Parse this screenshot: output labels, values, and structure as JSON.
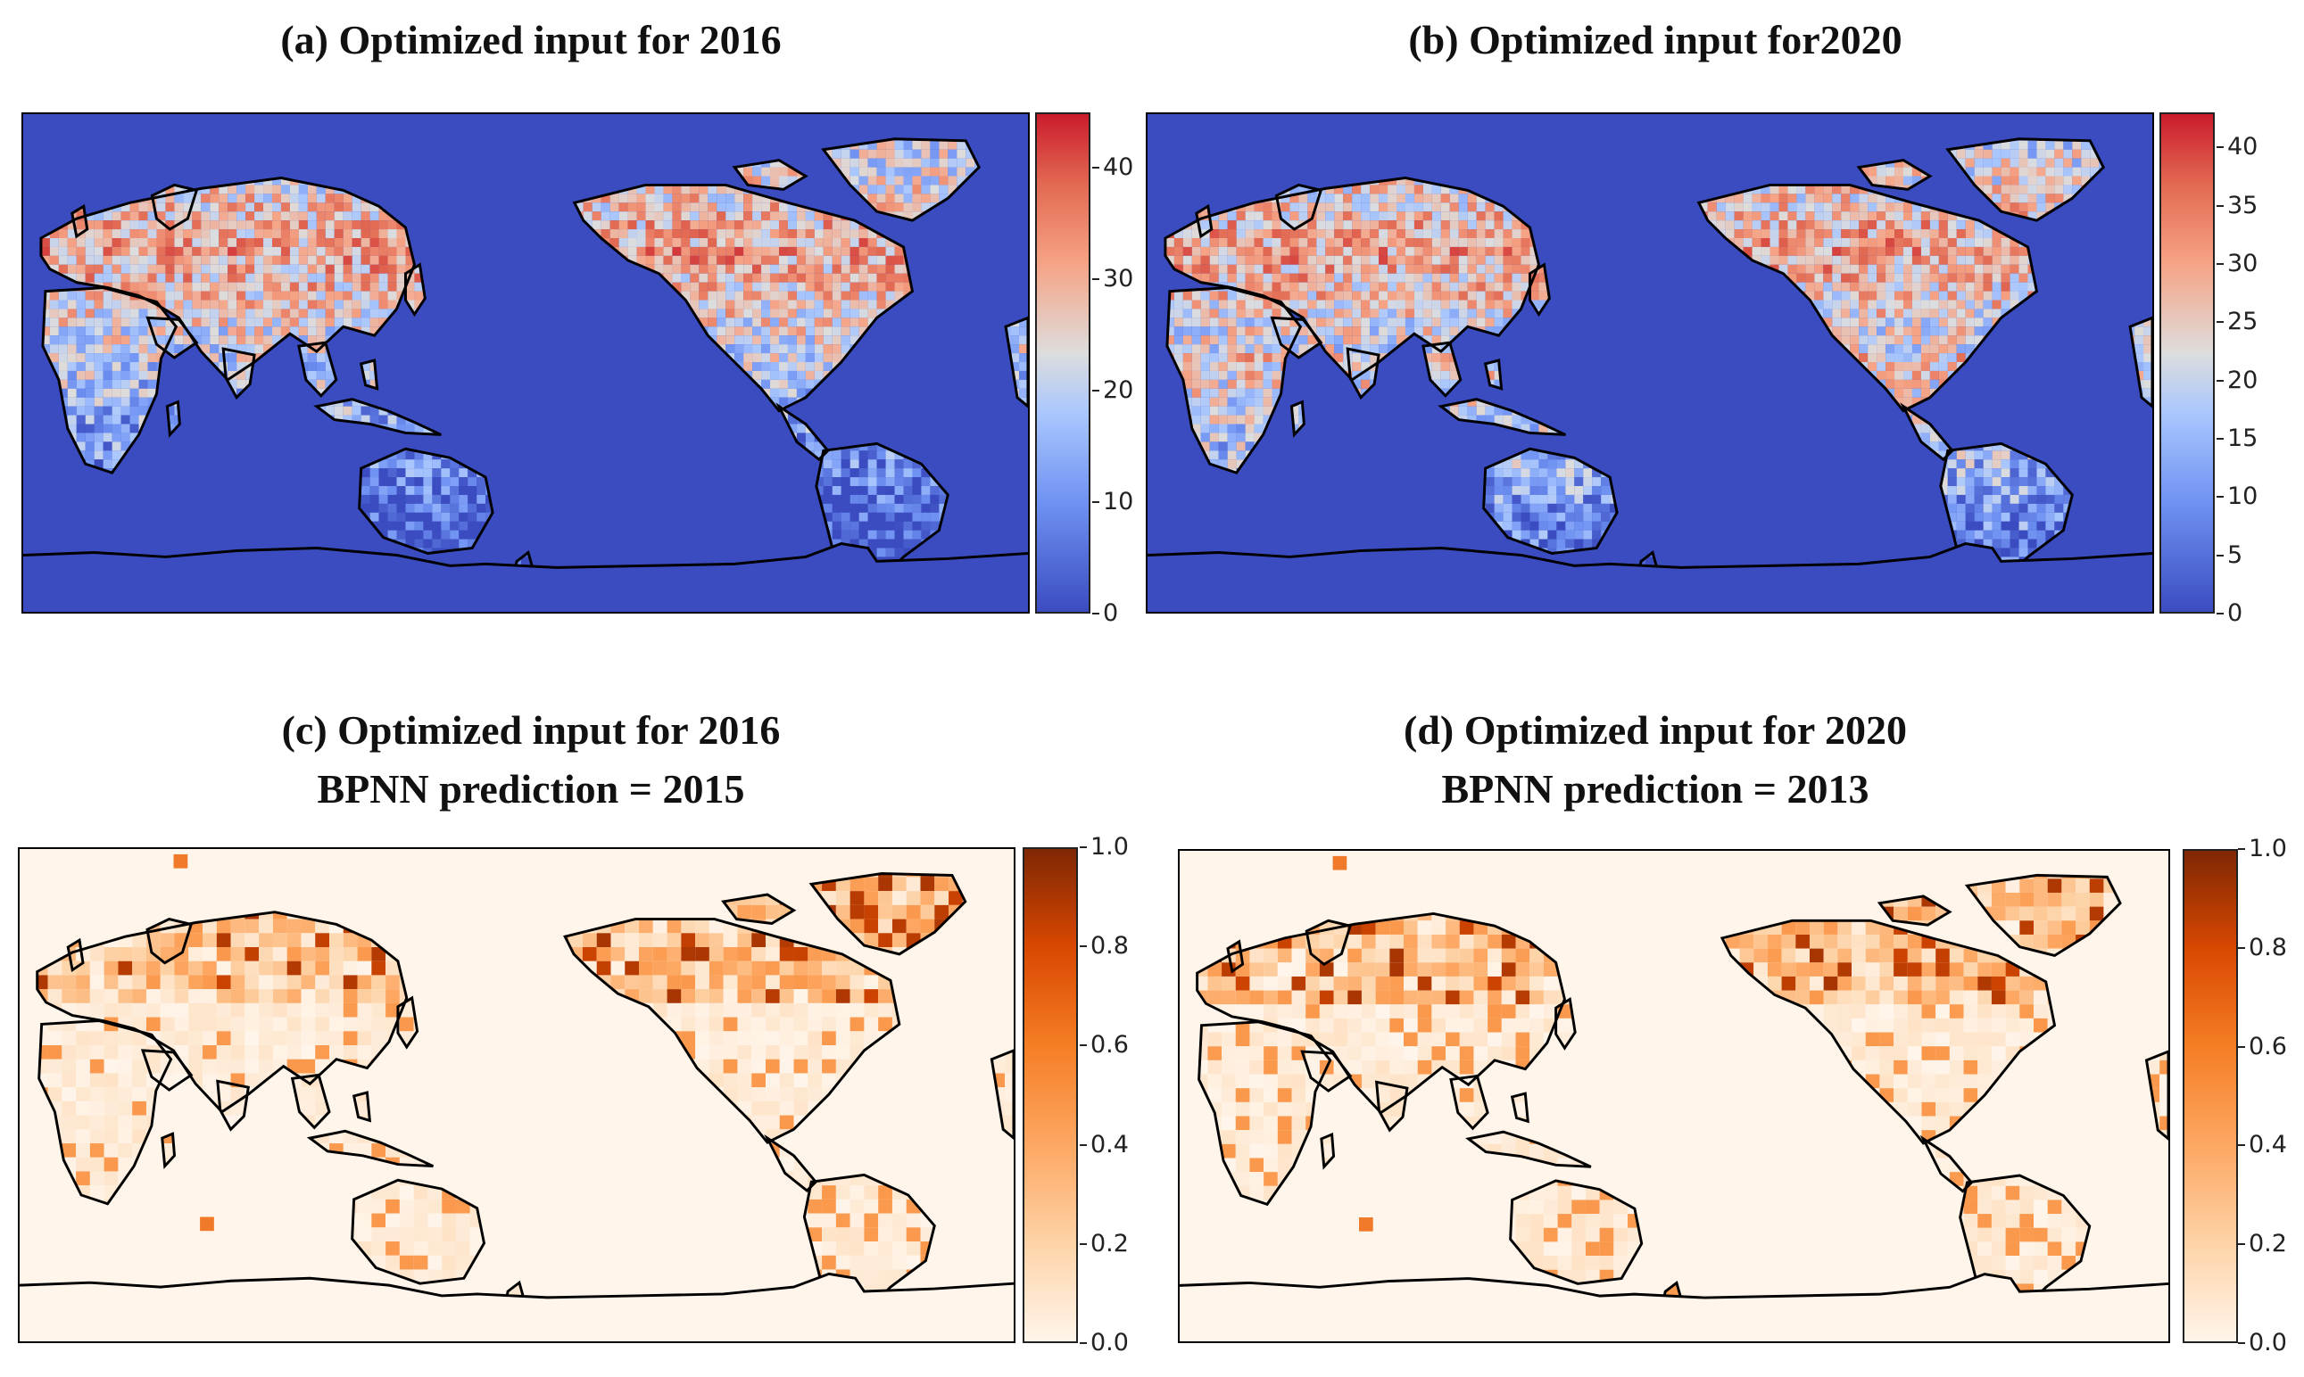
{
  "chart_data": [
    {
      "type": "heatmap",
      "id": "a",
      "title": "(a) Optimized input for 2016",
      "colormap": "coolwarm",
      "colorbar": {
        "min": 0,
        "max": 45,
        "ticks": [
          "0",
          "10",
          "20",
          "30",
          "40"
        ]
      }
    },
    {
      "type": "heatmap",
      "id": "b",
      "title": "(b) Optimized input for2020",
      "colormap": "coolwarm",
      "colorbar": {
        "min": 0,
        "max": 43,
        "ticks": [
          "0",
          "5",
          "10",
          "15",
          "20",
          "25",
          "30",
          "35",
          "40"
        ]
      }
    },
    {
      "type": "heatmap",
      "id": "c",
      "title_line1": "(c) Optimized input for 2016",
      "title_line2": "BPNN prediction = 2015",
      "colormap": "Oranges",
      "colorbar": {
        "min": 0,
        "max": 1,
        "ticks": [
          "0.0",
          "0.2",
          "0.4",
          "0.6",
          "0.8",
          "1.0"
        ]
      }
    },
    {
      "type": "heatmap",
      "id": "d",
      "title_line1": "(d) Optimized input for 2020",
      "title_line2": "BPNN prediction = 2013",
      "colormap": "Oranges",
      "colorbar": {
        "min": 0,
        "max": 1,
        "ticks": [
          "0.0",
          "0.2",
          "0.4",
          "0.6",
          "0.8",
          "1.0"
        ]
      }
    }
  ],
  "colors": {
    "ocean_cool": "#3a4cc0",
    "ocean_warm_bg": "#fff5eb",
    "coastline": "#000000"
  }
}
